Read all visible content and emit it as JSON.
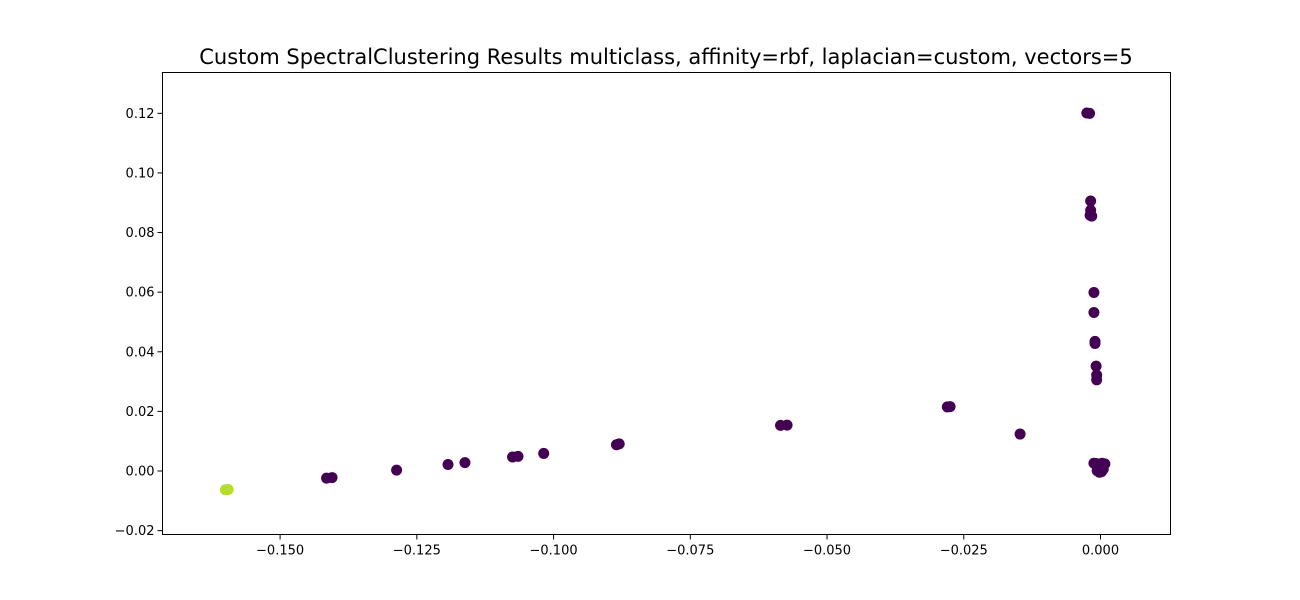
{
  "chart_data": {
    "type": "scatter",
    "title": "Custom SpectralClustering Results multiclass, affinity=rbf, laplacian=custom, vectors=5",
    "xlabel": "",
    "ylabel": "",
    "xlim": [
      -0.1715,
      0.0128
    ],
    "ylim": [
      -0.0213,
      0.1337
    ],
    "xticks": [
      -0.15,
      -0.125,
      -0.1,
      -0.075,
      -0.05,
      -0.025,
      0.0
    ],
    "xtick_labels": [
      "−0.150",
      "−0.125",
      "−0.100",
      "−0.075",
      "−0.050",
      "−0.025",
      "0.000"
    ],
    "yticks": [
      -0.02,
      0.0,
      0.02,
      0.04,
      0.06,
      0.08,
      0.1,
      0.12
    ],
    "ytick_labels": [
      "−0.02",
      "0.00",
      "0.02",
      "0.04",
      "0.06",
      "0.08",
      "0.10",
      "0.12"
    ],
    "grid": false,
    "legend": "none",
    "series": [
      {
        "color": "#440154",
        "points": [
          [
            -0.0025,
            0.1201
          ],
          [
            -0.002,
            0.12
          ],
          [
            -0.0018,
            0.0906
          ],
          [
            -0.0018,
            0.0875
          ],
          [
            -0.0019,
            0.0858
          ],
          [
            -0.0016,
            0.0855
          ],
          [
            -0.0012,
            0.0599
          ],
          [
            -0.0012,
            0.0532
          ],
          [
            -0.001,
            0.0435
          ],
          [
            -0.001,
            0.0428
          ],
          [
            -0.0008,
            0.0352
          ],
          [
            -0.0007,
            0.0322
          ],
          [
            -0.0007,
            0.0306
          ],
          [
            -0.0275,
            0.0216
          ],
          [
            -0.028,
            0.0215
          ],
          [
            -0.0147,
            0.0124
          ],
          [
            -0.0585,
            0.0153
          ],
          [
            -0.0573,
            0.0154
          ],
          [
            -0.0885,
            0.0088
          ],
          [
            -0.088,
            0.0091
          ],
          [
            -0.1018,
            0.0059
          ],
          [
            -0.1075,
            0.0047
          ],
          [
            -0.1065,
            0.0049
          ],
          [
            -0.1162,
            0.0028
          ],
          [
            -0.1193,
            0.0022
          ],
          [
            -0.1287,
            0.0003
          ],
          [
            -0.1415,
            -0.0024
          ],
          [
            -0.1405,
            -0.0022
          ],
          [
            -0.0012,
            0.0026
          ],
          [
            -0.0008,
            0.0025
          ],
          [
            0.0003,
            0.0026
          ],
          [
            0.0008,
            0.0024
          ],
          [
            -0.0005,
            0.0008
          ],
          [
            -0.0002,
            -0.0004
          ],
          [
            0.0002,
            -0.0002
          ],
          [
            0.0005,
            0.0006
          ],
          [
            -0.0006,
            0.0001
          ]
        ]
      },
      {
        "color": "#b5de2b",
        "points": [
          [
            -0.16,
            -0.0063
          ],
          [
            -0.1595,
            -0.0062
          ]
        ]
      }
    ]
  }
}
